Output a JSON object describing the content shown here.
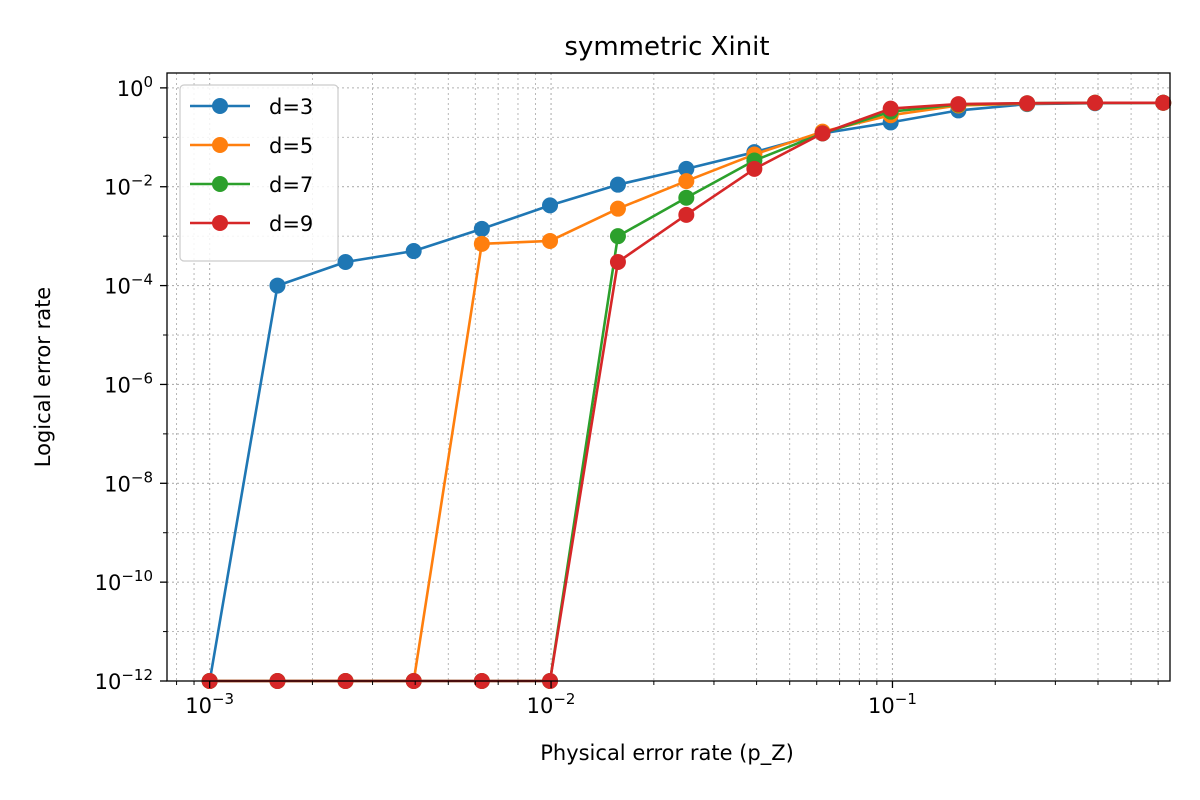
{
  "chart_data": {
    "type": "line",
    "title": "symmetric Xinit",
    "xlabel": "Physical error rate (p_Z)",
    "ylabel": "Logical error rate",
    "xscale": "log",
    "yscale": "log",
    "xlim": [
      0.00075,
      0.65
    ],
    "ylim": [
      1e-12,
      2
    ],
    "grid": true,
    "legend_position": "top-left",
    "x_ticks": [
      {
        "mant": "10",
        "exp": "−3",
        "value": 0.001
      },
      {
        "mant": "10",
        "exp": "−2",
        "value": 0.01
      },
      {
        "mant": "10",
        "exp": "−1",
        "value": 0.1
      }
    ],
    "y_ticks": [
      {
        "mant": "10",
        "exp": "0",
        "value": 1
      },
      {
        "mant": "10",
        "exp": "−2",
        "value": 0.01
      },
      {
        "mant": "10",
        "exp": "−4",
        "value": 0.0001
      },
      {
        "mant": "10",
        "exp": "−6",
        "value": 1e-06
      },
      {
        "mant": "10",
        "exp": "−8",
        "value": 1e-08
      },
      {
        "mant": "10",
        "exp": "−10",
        "value": 1e-10
      },
      {
        "mant": "10",
        "exp": "−12",
        "value": 1e-12
      }
    ],
    "x": [
      0.001,
      0.00158,
      0.0025,
      0.00396,
      0.00627,
      0.00993,
      0.0157,
      0.0249,
      0.0394,
      0.0624,
      0.0988,
      0.156,
      0.248,
      0.392,
      0.621
    ],
    "series": [
      {
        "name": "d=3",
        "color": "#1f77b4",
        "values": [
          1e-12,
          0.0001,
          0.0003,
          0.0005,
          0.0014,
          0.0042,
          0.011,
          0.023,
          0.05,
          0.12,
          0.2,
          0.35,
          0.47,
          0.49,
          0.5
        ]
      },
      {
        "name": "d=5",
        "color": "#ff7f0e",
        "values": [
          1e-12,
          1e-12,
          1e-12,
          1e-12,
          0.0007,
          0.0008,
          0.0036,
          0.013,
          0.045,
          0.13,
          0.28,
          0.44,
          0.48,
          0.5,
          0.5
        ]
      },
      {
        "name": "d=7",
        "color": "#2ca02c",
        "values": [
          1e-12,
          1e-12,
          1e-12,
          1e-12,
          1e-12,
          1e-12,
          0.001,
          0.006,
          0.034,
          0.12,
          0.33,
          0.46,
          0.49,
          0.5,
          0.5
        ]
      },
      {
        "name": "d=9",
        "color": "#d62728",
        "values": [
          1e-12,
          1e-12,
          1e-12,
          1e-12,
          1e-12,
          1e-12,
          0.0003,
          0.0027,
          0.023,
          0.12,
          0.38,
          0.47,
          0.49,
          0.5,
          0.5
        ]
      }
    ]
  }
}
